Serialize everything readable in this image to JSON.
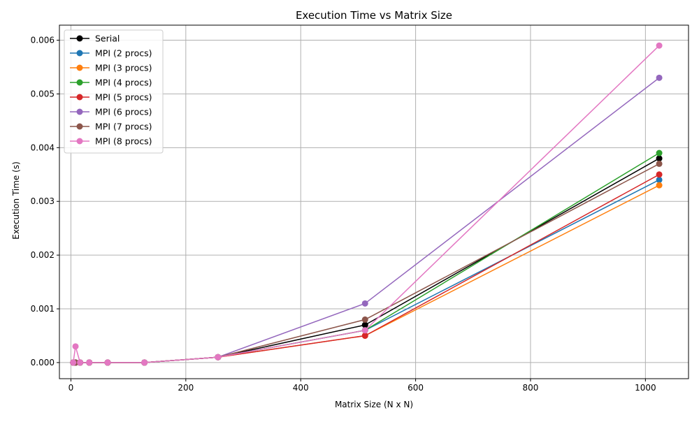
{
  "chart_data": {
    "type": "line",
    "title": "Execution Time vs Matrix Size",
    "xlabel": "Matrix Size (N x N)",
    "ylabel": "Execution Time (s)",
    "xlim": [
      -20,
      1075
    ],
    "ylim": [
      -0.0003,
      0.00628
    ],
    "xticks": [
      0,
      200,
      400,
      600,
      800,
      1000
    ],
    "xtick_labels": [
      "0",
      "200",
      "400",
      "600",
      "800",
      "1000"
    ],
    "yticks": [
      0,
      0.001,
      0.002,
      0.003,
      0.004,
      0.005,
      0.006
    ],
    "ytick_labels": [
      "0.000",
      "0.001",
      "0.002",
      "0.003",
      "0.004",
      "0.005",
      "0.006"
    ],
    "grid": true,
    "legend_position": "top-left",
    "marker": "circle",
    "series": [
      {
        "name": "Serial",
        "color": "#000000",
        "x": [
          4,
          8,
          16,
          32,
          64,
          128,
          256,
          512,
          1024
        ],
        "y": [
          0,
          0,
          0,
          0,
          0,
          0,
          0.0001,
          0.0007,
          0.0038
        ]
      },
      {
        "name": "MPI (2 procs)",
        "color": "#1f77b4",
        "x": [
          4,
          8,
          16,
          32,
          64,
          128,
          256,
          512,
          1024
        ],
        "y": [
          0,
          0,
          0,
          0,
          0,
          0,
          0.0001,
          0.0006,
          0.0034
        ]
      },
      {
        "name": "MPI (3 procs)",
        "color": "#ff7f0e",
        "x": [
          4,
          8,
          16,
          32,
          64,
          128,
          256,
          512,
          1024
        ],
        "y": [
          0,
          0,
          0,
          0,
          0,
          0,
          0.0001,
          0.0005,
          0.0033
        ]
      },
      {
        "name": "MPI (4 procs)",
        "color": "#2ca02c",
        "x": [
          4,
          8,
          16,
          32,
          64,
          128,
          256,
          512,
          1024
        ],
        "y": [
          0,
          0,
          0,
          0,
          0,
          0,
          0.0001,
          0.0006,
          0.0039
        ]
      },
      {
        "name": "MPI (5 procs)",
        "color": "#d62728",
        "x": [
          4,
          8,
          16,
          32,
          64,
          128,
          256,
          512,
          1024
        ],
        "y": [
          0,
          0,
          0,
          0,
          0,
          0,
          0.0001,
          0.0005,
          0.0035
        ]
      },
      {
        "name": "MPI (6 procs)",
        "color": "#9467bd",
        "x": [
          4,
          8,
          16,
          32,
          64,
          128,
          256,
          512,
          1024
        ],
        "y": [
          0,
          0,
          0,
          0,
          0,
          0,
          0.0001,
          0.0011,
          0.0053
        ]
      },
      {
        "name": "MPI (7 procs)",
        "color": "#8c564b",
        "x": [
          4,
          8,
          16,
          32,
          64,
          128,
          256,
          512,
          1024
        ],
        "y": [
          0,
          0,
          0,
          0,
          0,
          0,
          0.0001,
          0.0008,
          0.0037
        ]
      },
      {
        "name": "MPI (8 procs)",
        "color": "#e377c2",
        "x": [
          4,
          8,
          16,
          32,
          64,
          128,
          256,
          512,
          1024
        ],
        "y": [
          0,
          0.0003,
          0,
          0,
          0,
          0,
          0.0001,
          0.0006,
          0.0059
        ]
      }
    ]
  }
}
